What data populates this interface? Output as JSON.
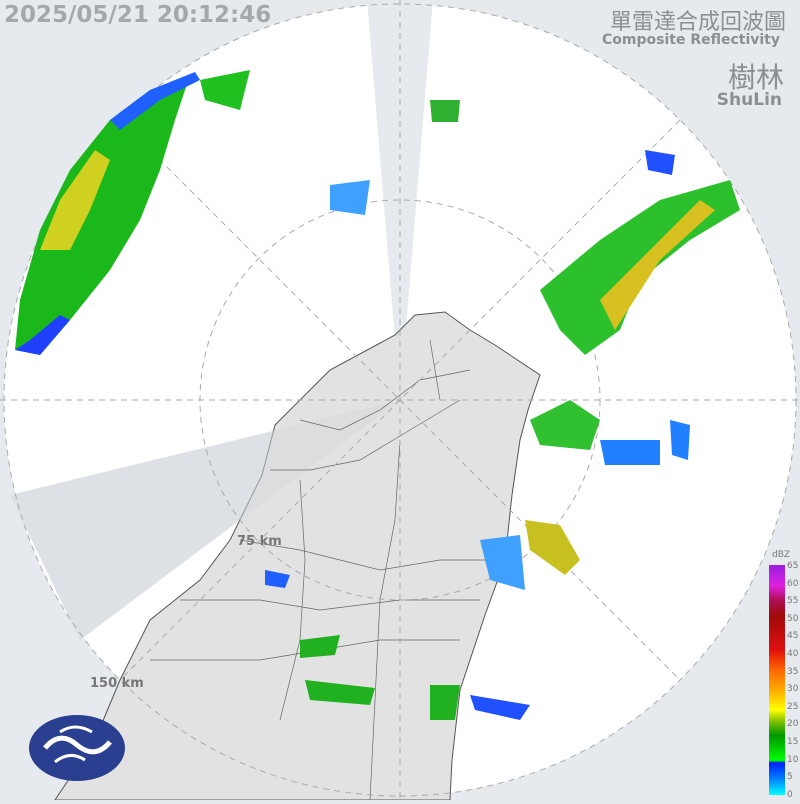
{
  "header": {
    "timestamp": "2025/05/21 20:12:46",
    "title_zh": "單雷達合成回波圖",
    "title_en": "Composite Reflectivity",
    "station_zh": "樹林",
    "station_en": "ShuLin"
  },
  "rings": {
    "inner": "75 km",
    "outer": "150 km"
  },
  "legend": {
    "unit": "dBZ",
    "ticks": [
      "65",
      "60",
      "55",
      "50",
      "45",
      "40",
      "35",
      "30",
      "25",
      "20",
      "15",
      "10",
      "5",
      "0"
    ],
    "colors": [
      "#9a1fe0",
      "#e020e0",
      "#a00a0a",
      "#e01010",
      "#ff6a00",
      "#ffb000",
      "#ffff00",
      "#009900",
      "#00ff00",
      "#0020ff",
      "#0080ff",
      "#00ffff"
    ]
  },
  "logo": "cwa-logo"
}
